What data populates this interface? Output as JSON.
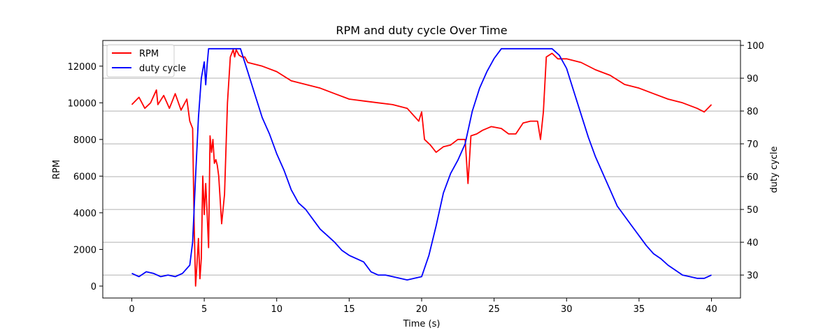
{
  "chart_data": {
    "type": "line",
    "title": "RPM and duty cycle Over Time",
    "xlabel": "Time (s)",
    "ylabel_left": "RPM",
    "ylabel_right": "duty cycle",
    "xlim": [
      -2,
      42
    ],
    "ylim_left": [
      -650,
      13400
    ],
    "ylim_right": [
      23,
      101.5
    ],
    "x_ticks": [
      0,
      5,
      10,
      15,
      20,
      25,
      30,
      35,
      40
    ],
    "y_left_ticks": [
      0,
      2000,
      4000,
      6000,
      8000,
      10000,
      12000
    ],
    "y_right_ticks": [
      30,
      40,
      50,
      60,
      70,
      80,
      90,
      100
    ],
    "grid": "horizontal lines at right-axis ticks",
    "legend_position": "top-left",
    "series": [
      {
        "name": "RPM",
        "axis": "left",
        "color": "#ff0000",
        "x": [
          0,
          0.5,
          0.9,
          1.3,
          1.7,
          1.8,
          2.2,
          2.6,
          3.0,
          3.4,
          3.8,
          4.0,
          4.2,
          4.3,
          4.4,
          4.5,
          4.6,
          4.7,
          4.8,
          4.9,
          5.0,
          5.1,
          5.2,
          5.3,
          5.4,
          5.5,
          5.6,
          5.7,
          5.8,
          5.9,
          6.0,
          6.2,
          6.4,
          6.6,
          6.8,
          7.0,
          7.1,
          7.2,
          7.4,
          7.6,
          7.8,
          8.0,
          9.0,
          10.0,
          11.0,
          12.0,
          13.0,
          14.0,
          15.0,
          16.0,
          17.0,
          18.0,
          19.0,
          19.8,
          20.0,
          20.2,
          20.6,
          21.0,
          21.5,
          22.0,
          22.5,
          23.0,
          23.2,
          23.4,
          23.8,
          24.2,
          24.8,
          25.5,
          26.0,
          26.5,
          27.0,
          27.5,
          28.0,
          28.2,
          28.4,
          28.6,
          29.0,
          29.4,
          29.8,
          30.0,
          31.0,
          32.0,
          33.0,
          34.0,
          35.0,
          36.0,
          37.0,
          38.0,
          39.0,
          39.5,
          40.0
        ],
        "values": [
          9900,
          10300,
          9700,
          10000,
          10700,
          9900,
          10400,
          9700,
          10500,
          9600,
          10200,
          9000,
          8600,
          3500,
          0,
          1200,
          2600,
          400,
          1500,
          6000,
          3900,
          5600,
          4000,
          2100,
          8200,
          7300,
          8000,
          6700,
          6900,
          6600,
          6000,
          3400,
          5000,
          10000,
          12500,
          12900,
          12500,
          12900,
          12600,
          12500,
          12500,
          12200,
          12000,
          11700,
          11200,
          11000,
          10800,
          10500,
          10200,
          10100,
          10000,
          9900,
          9700,
          9000,
          9500,
          8000,
          7700,
          7300,
          7600,
          7700,
          8000,
          8000,
          5600,
          8200,
          8300,
          8500,
          8700,
          8600,
          8300,
          8300,
          8900,
          9000,
          9000,
          8000,
          9500,
          12500,
          12700,
          12400,
          12400,
          12400,
          12200,
          11800,
          11500,
          11000,
          10800,
          10500,
          10200,
          10000,
          9700,
          9500,
          9900
        ]
      },
      {
        "name": "duty cycle",
        "axis": "right",
        "color": "#0000ff",
        "x": [
          0,
          0.5,
          1.0,
          1.5,
          2.0,
          2.5,
          3.0,
          3.5,
          4.0,
          4.2,
          4.4,
          4.6,
          4.8,
          5.0,
          5.1,
          5.2,
          5.3,
          5.5,
          6.0,
          6.5,
          7.0,
          7.5,
          8.0,
          8.5,
          9.0,
          9.5,
          10.0,
          10.5,
          11.0,
          11.5,
          12.0,
          12.5,
          13.0,
          13.5,
          14.0,
          14.5,
          15.0,
          15.5,
          16.0,
          16.5,
          17.0,
          17.5,
          18.0,
          18.5,
          19.0,
          19.5,
          20.0,
          20.5,
          21.0,
          21.5,
          22.0,
          22.5,
          23.0,
          23.5,
          24.0,
          24.5,
          25.0,
          25.5,
          26.0,
          27.0,
          28.0,
          29.0,
          29.5,
          30.0,
          30.5,
          31.0,
          31.5,
          32.0,
          32.5,
          33.0,
          33.5,
          34.0,
          34.5,
          35.0,
          35.5,
          36.0,
          36.5,
          37.0,
          37.5,
          38.0,
          38.5,
          39.0,
          39.5,
          40.0
        ],
        "values": [
          30.5,
          29.5,
          31,
          30.5,
          29.5,
          30,
          29.5,
          30.5,
          33,
          40,
          60,
          78,
          90,
          95,
          88,
          94,
          99,
          99,
          99,
          99,
          99,
          99,
          92,
          85,
          78,
          73,
          67,
          62,
          56,
          52,
          50,
          47,
          44,
          42,
          40,
          37.5,
          36,
          35,
          34,
          31,
          30,
          30,
          29.5,
          29,
          28.5,
          29,
          29.5,
          36,
          45,
          55,
          61,
          65,
          70,
          80,
          87,
          92,
          96,
          99,
          99,
          99,
          99,
          99,
          97,
          93,
          86,
          79,
          72,
          66,
          61,
          56,
          51,
          48,
          45,
          42,
          39,
          36.5,
          35,
          33,
          31.5,
          30,
          29.5,
          29,
          29,
          30
        ]
      }
    ]
  }
}
